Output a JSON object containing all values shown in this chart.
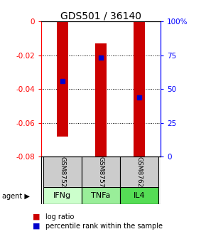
{
  "title": "GDS501 / 36140",
  "samples": [
    "GSM8752",
    "GSM8757",
    "GSM8762"
  ],
  "agents": [
    "IFNg",
    "TNFa",
    "IL4"
  ],
  "log_ratio_tops": [
    0.0,
    -0.013,
    0.0
  ],
  "log_ratio_bottoms": [
    -0.068,
    -0.082,
    -0.081
  ],
  "percentile_ranks": [
    56,
    73,
    44
  ],
  "left_ticks": [
    0,
    -0.02,
    -0.04,
    -0.06,
    -0.08
  ],
  "right_ticks": [
    100,
    75,
    50,
    25,
    0
  ],
  "right_tick_labels": [
    "100%",
    "75",
    "50",
    "25",
    "0"
  ],
  "bar_color": "#cc0000",
  "dot_color": "#0000cc",
  "sample_box_color": "#cccccc",
  "agent_colors": [
    "#ccffcc",
    "#99ee99",
    "#55dd55"
  ],
  "background_color": "#ffffff"
}
